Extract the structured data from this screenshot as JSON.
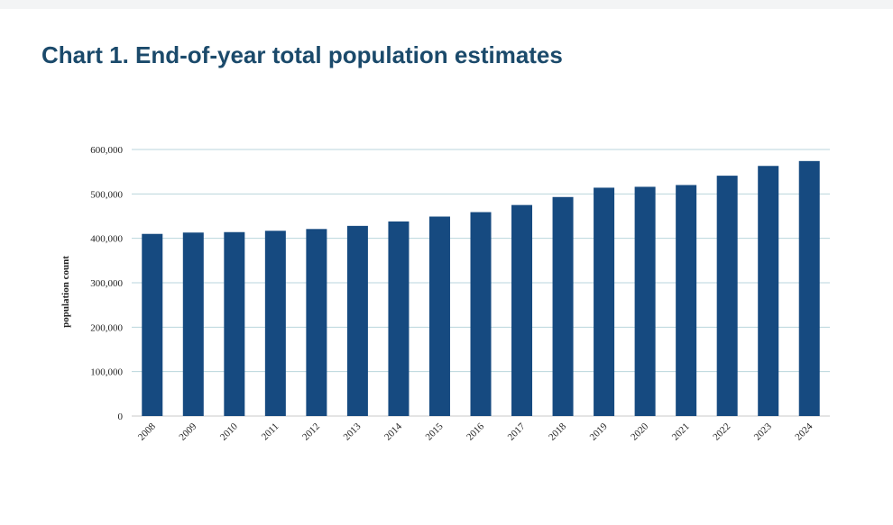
{
  "page": {
    "title": "Chart 1. End-of-year total population estimates"
  },
  "colors": {
    "title": "#1b4a6b",
    "bar": "#164a80",
    "grid": "#b9d6dc"
  },
  "chart_data": {
    "type": "bar",
    "title": "",
    "xlabel": "",
    "ylabel": "population count",
    "categories": [
      "2008",
      "2009",
      "2010",
      "2011",
      "2012",
      "2013",
      "2014",
      "2015",
      "2016",
      "2017",
      "2018",
      "2019",
      "2020",
      "2021",
      "2022",
      "2023",
      "2024"
    ],
    "series": [
      {
        "values": [
          410000,
          413000,
          414000,
          417000,
          421000,
          428000,
          438000,
          449000,
          459000,
          475000,
          493000,
          514000,
          516000,
          520000,
          541000,
          563000,
          574000
        ]
      }
    ],
    "ylim": [
      0,
      600000
    ],
    "yticks": [
      0,
      100000,
      200000,
      300000,
      400000,
      500000,
      600000
    ],
    "ytick_labels": [
      "0",
      "100,000",
      "200,000",
      "300,000",
      "400,000",
      "500,000",
      "600,000"
    ],
    "grid": true,
    "legend": "none"
  }
}
